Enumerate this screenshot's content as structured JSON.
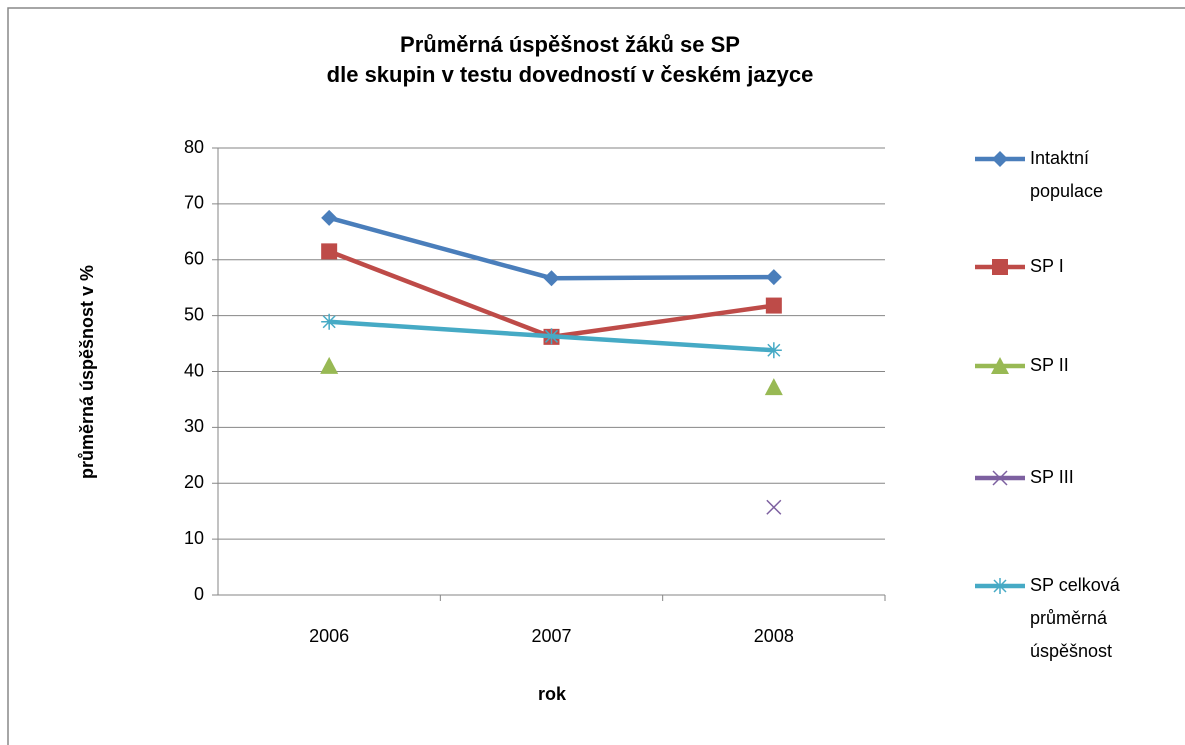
{
  "chart_data": {
    "type": "line",
    "title": [
      "Průměrná úspěšnost žáků se SP",
      "dle skupin v testu dovedností v českém jazyce"
    ],
    "xlabel": "rok",
    "ylabel": "průměrná úspěšnost v %",
    "categories": [
      "2006",
      "2007",
      "2008"
    ],
    "ylim": [
      0,
      80
    ],
    "yticks": [
      0,
      10,
      20,
      30,
      40,
      50,
      60,
      70,
      80
    ],
    "grid": true,
    "legend": "right",
    "series": [
      {
        "name": "Intaktní populace",
        "color": "#4a7ebb",
        "marker": "diamond",
        "values": [
          67.5,
          56.7,
          56.9
        ]
      },
      {
        "name": "SP I",
        "color": "#be4b48",
        "marker": "square",
        "values": [
          61.5,
          46.2,
          51.8
        ]
      },
      {
        "name": "SP II",
        "color": "#98b954",
        "marker": "triangle",
        "values": [
          41,
          null,
          37.2
        ]
      },
      {
        "name": "SP III",
        "color": "#7d60a0",
        "marker": "x",
        "values": [
          null,
          null,
          15.7
        ]
      },
      {
        "name": "SP celková průměrná úspěšnost",
        "color": "#46aac5",
        "marker": "star",
        "values": [
          48.9,
          46.3,
          43.8
        ]
      }
    ]
  }
}
